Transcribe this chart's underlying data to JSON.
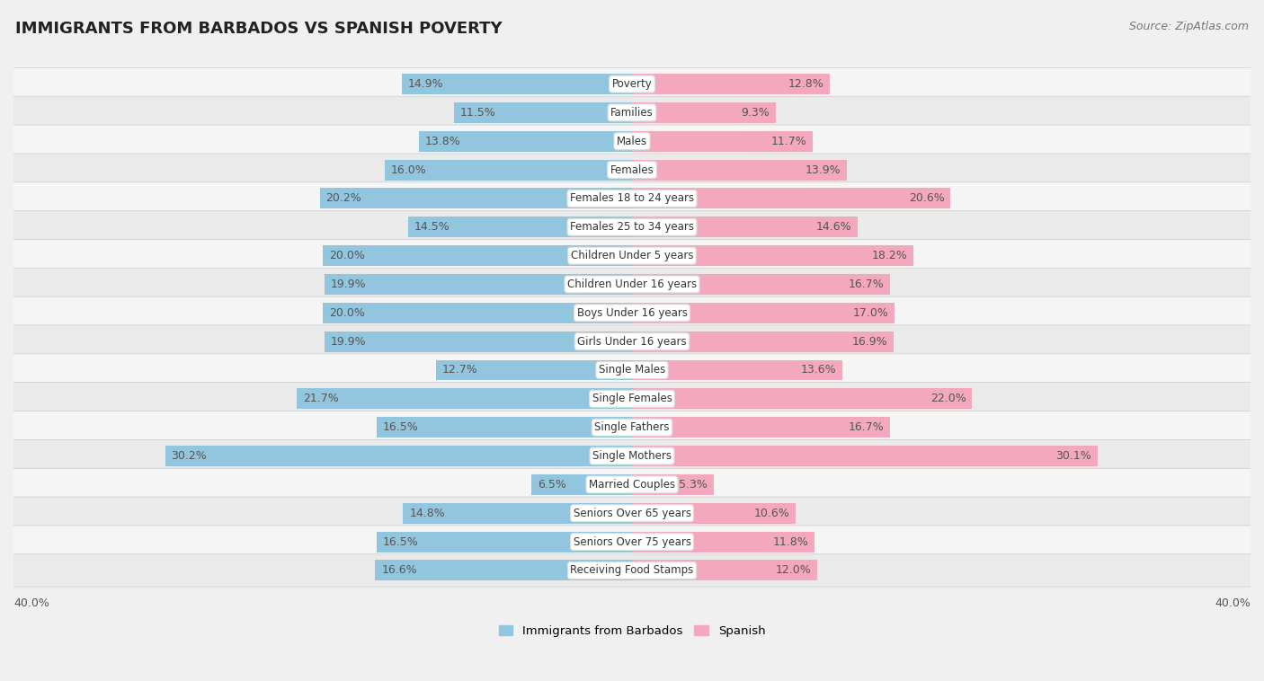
{
  "title": "IMMIGRANTS FROM BARBADOS VS SPANISH POVERTY",
  "source": "Source: ZipAtlas.com",
  "categories": [
    "Poverty",
    "Families",
    "Males",
    "Females",
    "Females 18 to 24 years",
    "Females 25 to 34 years",
    "Children Under 5 years",
    "Children Under 16 years",
    "Boys Under 16 years",
    "Girls Under 16 years",
    "Single Males",
    "Single Females",
    "Single Fathers",
    "Single Mothers",
    "Married Couples",
    "Seniors Over 65 years",
    "Seniors Over 75 years",
    "Receiving Food Stamps"
  ],
  "left_values": [
    14.9,
    11.5,
    13.8,
    16.0,
    20.2,
    14.5,
    20.0,
    19.9,
    20.0,
    19.9,
    12.7,
    21.7,
    16.5,
    30.2,
    6.5,
    14.8,
    16.5,
    16.6
  ],
  "right_values": [
    12.8,
    9.3,
    11.7,
    13.9,
    20.6,
    14.6,
    18.2,
    16.7,
    17.0,
    16.9,
    13.6,
    22.0,
    16.7,
    30.1,
    5.3,
    10.6,
    11.8,
    12.0
  ],
  "left_color": "#92C5DE",
  "right_color": "#F4A8BE",
  "left_label": "Immigrants from Barbados",
  "right_label": "Spanish",
  "axis_max": 40.0,
  "row_light": "#f5f5f5",
  "row_dark": "#eaeaea",
  "bar_background": "#ffffff",
  "title_fontsize": 13,
  "source_fontsize": 9,
  "value_fontsize": 9,
  "cat_fontsize": 8.5
}
